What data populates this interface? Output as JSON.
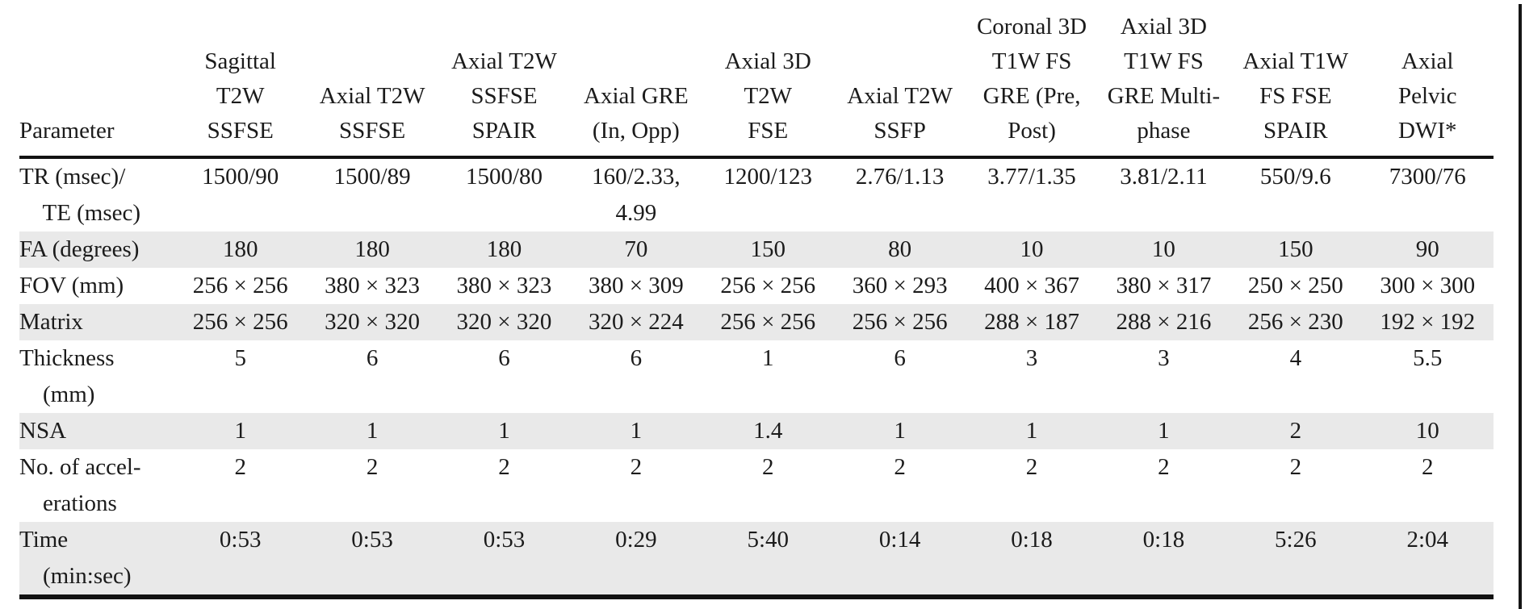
{
  "table": {
    "columns": [
      {
        "label": "Parameter"
      },
      {
        "label": "Sagittal\nT2W\nSSFSE"
      },
      {
        "label": "Axial T2W\nSSFSE"
      },
      {
        "label": "Axial T2W\nSSFSE\nSPAIR"
      },
      {
        "label": "Axial GRE\n(In, Opp)"
      },
      {
        "label": "Axial 3D\nT2W\nFSE"
      },
      {
        "label": "Axial T2W\nSSFP"
      },
      {
        "label": "Coronal 3D\nT1W FS\nGRE (Pre,\nPost)"
      },
      {
        "label": "Axial 3D\nT1W FS\nGRE Multi-\nphase"
      },
      {
        "label": "Axial T1W\nFS FSE\nSPAIR"
      },
      {
        "label": "Axial\nPelvic\nDWI*"
      }
    ],
    "rows": [
      {
        "label": "TR (msec)/\n    TE (msec)",
        "values": [
          "1500/90",
          "1500/89",
          "1500/80",
          "160/2.33,\n4.99",
          "1200/123",
          "2.76/1.13",
          "3.77/1.35",
          "3.81/2.11",
          "550/9.6",
          "7300/76"
        ]
      },
      {
        "label": "FA (degrees)",
        "values": [
          "180",
          "180",
          "180",
          "70",
          "150",
          "80",
          "10",
          "10",
          "150",
          "90"
        ]
      },
      {
        "label": "FOV (mm)",
        "values": [
          "256 × 256",
          "380 × 323",
          "380 × 323",
          "380 × 309",
          "256 × 256",
          "360 × 293",
          "400 × 367",
          "380 × 317",
          "250 × 250",
          "300 × 300"
        ]
      },
      {
        "label": "Matrix",
        "values": [
          "256 × 256",
          "320 × 320",
          "320 × 320",
          "320 × 224",
          "256 × 256",
          "256 × 256",
          "288 × 187",
          "288 × 216",
          "256 × 230",
          "192 × 192"
        ]
      },
      {
        "label": "Thickness\n    (mm)",
        "values": [
          "5",
          "6",
          "6",
          "6",
          "1",
          "6",
          "3",
          "3",
          "4",
          "5.5"
        ]
      },
      {
        "label": "NSA",
        "values": [
          "1",
          "1",
          "1",
          "1",
          "1.4",
          "1",
          "1",
          "1",
          "2",
          "10"
        ]
      },
      {
        "label": "No. of accel-\n    erations",
        "values": [
          "2",
          "2",
          "2",
          "2",
          "2",
          "2",
          "2",
          "2",
          "2",
          "2"
        ]
      },
      {
        "label": "Time\n    (min:sec)",
        "values": [
          "0:53",
          "0:53",
          "0:53",
          "0:29",
          "5:40",
          "0:14",
          "0:18",
          "0:18",
          "5:26",
          "2:04"
        ]
      }
    ]
  },
  "colors": {
    "shaded_row": "#e9e9e9",
    "text": "#1b1b1b",
    "rule": "#121212"
  }
}
